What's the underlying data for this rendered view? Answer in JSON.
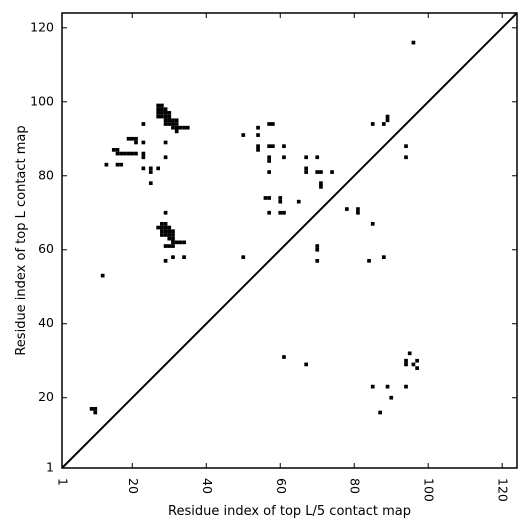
{
  "chart_data": {
    "type": "scatter",
    "title": "",
    "xlabel": "Residue index of top L/5 contact map",
    "ylabel": "Residue index of top L contact map",
    "xlim": [
      1,
      124
    ],
    "ylim": [
      1,
      124
    ],
    "x_ticks": [
      1,
      20,
      40,
      60,
      80,
      100,
      120
    ],
    "y_ticks": [
      1,
      20,
      40,
      60,
      80,
      100,
      120
    ],
    "x_tick_labels": [
      "1",
      "20",
      "40",
      "60",
      "80",
      "100",
      "120"
    ],
    "y_tick_labels": [
      "1",
      "20",
      "40",
      "60",
      "80",
      "100",
      "120"
    ],
    "x_tick_rotation": 90,
    "grid": false,
    "marker": "square",
    "marker_color": "#000000",
    "diagonal_line": true,
    "upper_triangle_points": [
      [
        27,
        99
      ],
      [
        28,
        99
      ],
      [
        27,
        98
      ],
      [
        28,
        98
      ],
      [
        29,
        98
      ],
      [
        27,
        97
      ],
      [
        28,
        97
      ],
      [
        29,
        97
      ],
      [
        30,
        97
      ],
      [
        27,
        96
      ],
      [
        28,
        96
      ],
      [
        29,
        96
      ],
      [
        30,
        96
      ],
      [
        29,
        95
      ],
      [
        30,
        95
      ],
      [
        31,
        95
      ],
      [
        32,
        95
      ],
      [
        29,
        94
      ],
      [
        30,
        94
      ],
      [
        31,
        94
      ],
      [
        32,
        94
      ],
      [
        31,
        93
      ],
      [
        32,
        93
      ],
      [
        33,
        93
      ],
      [
        34,
        93
      ],
      [
        35,
        93
      ],
      [
        32,
        92
      ],
      [
        23,
        94
      ],
      [
        19,
        90
      ],
      [
        20,
        90
      ],
      [
        21,
        90
      ],
      [
        21,
        89
      ],
      [
        23,
        89
      ],
      [
        29,
        89
      ],
      [
        15,
        87
      ],
      [
        16,
        87
      ],
      [
        16,
        86
      ],
      [
        17,
        86
      ],
      [
        18,
        86
      ],
      [
        19,
        86
      ],
      [
        20,
        86
      ],
      [
        21,
        86
      ],
      [
        23,
        86
      ],
      [
        23,
        85
      ],
      [
        29,
        85
      ],
      [
        13,
        83
      ],
      [
        16,
        83
      ],
      [
        17,
        83
      ],
      [
        23,
        82
      ],
      [
        25,
        82
      ],
      [
        27,
        82
      ],
      [
        25,
        81
      ],
      [
        25,
        78
      ],
      [
        28,
        67
      ],
      [
        29,
        67
      ],
      [
        27,
        66
      ],
      [
        28,
        66
      ],
      [
        29,
        66
      ],
      [
        30,
        66
      ],
      [
        28,
        65
      ],
      [
        29,
        65
      ],
      [
        30,
        65
      ],
      [
        31,
        65
      ],
      [
        28,
        64
      ],
      [
        29,
        64
      ],
      [
        30,
        64
      ],
      [
        31,
        64
      ],
      [
        30,
        63
      ],
      [
        31,
        63
      ],
      [
        31,
        62
      ],
      [
        32,
        62
      ],
      [
        33,
        62
      ],
      [
        34,
        62
      ],
      [
        29,
        61
      ],
      [
        30,
        61
      ],
      [
        31,
        61
      ],
      [
        29,
        70
      ],
      [
        31,
        58
      ],
      [
        34,
        58
      ],
      [
        29,
        57
      ],
      [
        12,
        53
      ],
      [
        50,
        91
      ],
      [
        54,
        93
      ],
      [
        54,
        91
      ],
      [
        54,
        88
      ],
      [
        54,
        87
      ],
      [
        57,
        94
      ],
      [
        58,
        94
      ],
      [
        57,
        88
      ],
      [
        58,
        88
      ],
      [
        61,
        88
      ],
      [
        57,
        85
      ],
      [
        61,
        85
      ],
      [
        57,
        84
      ],
      [
        57,
        81
      ],
      [
        56,
        74
      ],
      [
        57,
        74
      ],
      [
        60,
        74
      ],
      [
        60,
        73
      ],
      [
        65,
        73
      ],
      [
        57,
        70
      ],
      [
        60,
        70
      ],
      [
        61,
        70
      ],
      [
        67,
        85
      ],
      [
        70,
        85
      ],
      [
        67,
        82
      ],
      [
        67,
        81
      ],
      [
        70,
        81
      ],
      [
        71,
        81
      ],
      [
        74,
        81
      ],
      [
        71,
        78
      ],
      [
        71,
        77
      ],
      [
        50,
        58
      ],
      [
        96,
        116
      ]
    ],
    "lower_triangle_points": [
      [
        9,
        17
      ],
      [
        10,
        17
      ],
      [
        10,
        16
      ],
      [
        70,
        61
      ],
      [
        70,
        60
      ],
      [
        70,
        57
      ],
      [
        78,
        71
      ],
      [
        81,
        71
      ],
      [
        81,
        70
      ],
      [
        85,
        67
      ],
      [
        88,
        58
      ],
      [
        84,
        57
      ],
      [
        85,
        94
      ],
      [
        88,
        94
      ],
      [
        89,
        96
      ],
      [
        89,
        95
      ],
      [
        94,
        88
      ],
      [
        94,
        85
      ],
      [
        61,
        31
      ],
      [
        67,
        29
      ],
      [
        95,
        32
      ],
      [
        94,
        30
      ],
      [
        94,
        29
      ],
      [
        96,
        29
      ],
      [
        97,
        30
      ],
      [
        97,
        28
      ],
      [
        85,
        23
      ],
      [
        89,
        23
      ],
      [
        94,
        23
      ],
      [
        90,
        20
      ],
      [
        87,
        16
      ]
    ]
  }
}
